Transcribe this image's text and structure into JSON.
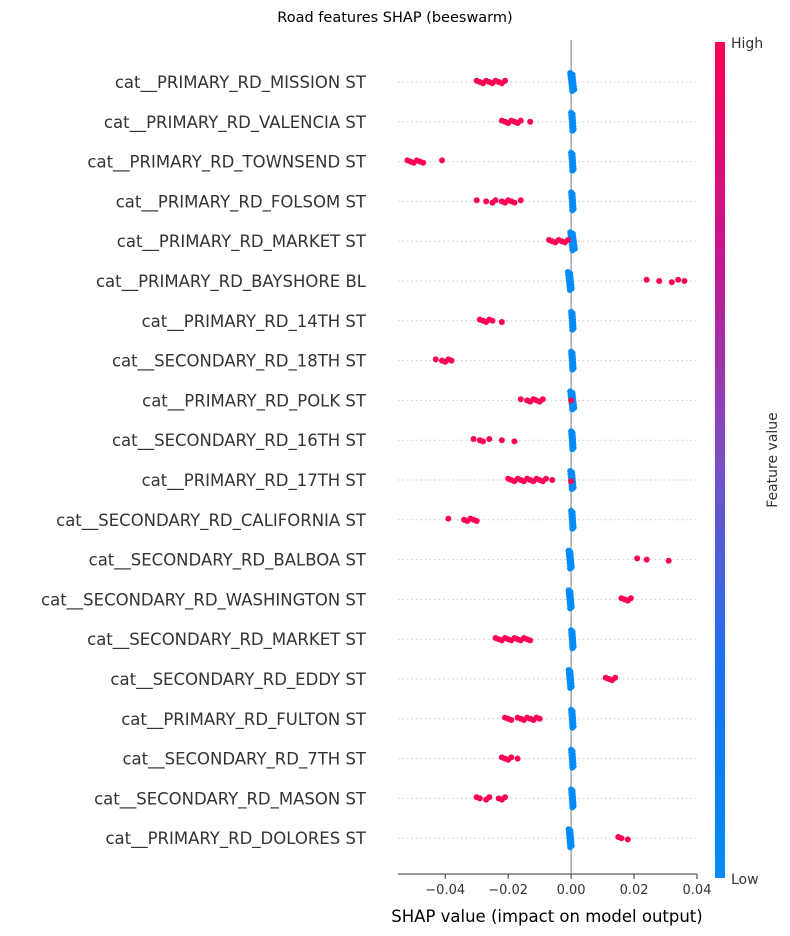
{
  "chart_data": {
    "type": "scatter",
    "subtype": "beeswarm",
    "title": "Road features SHAP (beeswarm)",
    "xlabel": "SHAP value (impact on model output)",
    "xlim": [
      -0.055,
      0.04
    ],
    "xticks": [
      -0.04,
      -0.02,
      0.0,
      0.02,
      0.04
    ],
    "xtick_labels": [
      "−0.04",
      "−0.02",
      "0.00",
      "0.02",
      "0.04"
    ],
    "colorbar": {
      "title": "Feature value",
      "high_label": "High",
      "low_label": "Low",
      "high_color": "#ff0052",
      "low_color": "#008bfb"
    },
    "features": [
      {
        "name": "cat__PRIMARY_RD_MISSION ST",
        "high_values": [
          -0.03,
          -0.029,
          -0.028,
          -0.027,
          -0.026,
          -0.025,
          -0.024,
          -0.023,
          -0.022,
          -0.021
        ],
        "low_range": [
          -0.0003,
          0.001
        ]
      },
      {
        "name": "cat__PRIMARY_RD_VALENCIA ST",
        "high_values": [
          -0.022,
          -0.021,
          -0.02,
          -0.019,
          -0.018,
          -0.017,
          -0.016,
          -0.013
        ],
        "low_range": [
          0.0,
          0.0008
        ]
      },
      {
        "name": "cat__PRIMARY_RD_TOWNSEND ST",
        "high_values": [
          -0.052,
          -0.051,
          -0.05,
          -0.049,
          -0.048,
          -0.047,
          -0.041
        ],
        "low_range": [
          0.0,
          0.0008
        ]
      },
      {
        "name": "cat__PRIMARY_RD_FOLSOM ST",
        "high_values": [
          -0.03,
          -0.027,
          -0.025,
          -0.024,
          -0.022,
          -0.021,
          -0.02,
          -0.019,
          -0.018,
          -0.016
        ],
        "low_range": [
          0.0,
          0.0008
        ]
      },
      {
        "name": "cat__PRIMARY_RD_MARKET ST",
        "high_values": [
          -0.007,
          -0.006,
          -0.005,
          -0.004,
          -0.003,
          -0.002,
          -0.001
        ],
        "low_range": [
          -0.0003,
          0.0012
        ]
      },
      {
        "name": "cat__PRIMARY_RD_BAYSHORE BL",
        "high_values": [
          0.024,
          0.028,
          0.032,
          0.034,
          0.036
        ],
        "low_range": [
          -0.001,
          0.0002
        ]
      },
      {
        "name": "cat__PRIMARY_RD_14TH ST",
        "high_values": [
          -0.029,
          -0.028,
          -0.027,
          -0.026,
          -0.025,
          -0.022
        ],
        "low_range": [
          0.0,
          0.0008
        ]
      },
      {
        "name": "cat__SECONDARY_RD_18TH ST",
        "high_values": [
          -0.043,
          -0.041,
          -0.04,
          -0.039,
          -0.038
        ],
        "low_range": [
          0.0,
          0.0008
        ]
      },
      {
        "name": "cat__PRIMARY_RD_POLK ST",
        "high_values": [
          -0.016,
          -0.014,
          -0.013,
          -0.012,
          -0.011,
          -0.01,
          -0.009,
          0.0
        ],
        "low_range": [
          -0.0003,
          0.001
        ]
      },
      {
        "name": "cat__SECONDARY_RD_16TH ST",
        "high_values": [
          -0.031,
          -0.029,
          -0.028,
          -0.026,
          -0.022,
          -0.018
        ],
        "low_range": [
          0.0,
          0.0008
        ]
      },
      {
        "name": "cat__PRIMARY_RD_17TH ST",
        "high_values": [
          -0.02,
          -0.019,
          -0.018,
          -0.017,
          -0.016,
          -0.015,
          -0.014,
          -0.013,
          -0.012,
          -0.011,
          -0.01,
          -0.009,
          -0.008,
          -0.006,
          0.0
        ],
        "low_range": [
          -0.0003,
          0.0008
        ]
      },
      {
        "name": "cat__SECONDARY_RD_CALIFORNIA ST",
        "high_values": [
          -0.039,
          -0.034,
          -0.033,
          -0.032,
          -0.031,
          -0.03
        ],
        "low_range": [
          0.0,
          0.0008
        ]
      },
      {
        "name": "cat__SECONDARY_RD_BALBOA ST",
        "high_values": [
          0.021,
          0.024,
          0.031
        ],
        "low_range": [
          -0.0008,
          0.0002
        ]
      },
      {
        "name": "cat__SECONDARY_RD_WASHINGTON ST",
        "high_values": [
          0.016,
          0.017,
          0.018,
          0.019
        ],
        "low_range": [
          -0.0008,
          0.0002
        ]
      },
      {
        "name": "cat__SECONDARY_RD_MARKET ST",
        "high_values": [
          -0.024,
          -0.023,
          -0.022,
          -0.021,
          -0.02,
          -0.019,
          -0.018,
          -0.017,
          -0.016,
          -0.015,
          -0.014,
          -0.013
        ],
        "low_range": [
          0.0,
          0.0008
        ]
      },
      {
        "name": "cat__SECONDARY_RD_EDDY ST",
        "high_values": [
          0.011,
          0.012,
          0.013,
          0.014
        ],
        "low_range": [
          -0.0008,
          0.0002
        ]
      },
      {
        "name": "cat__PRIMARY_RD_FULTON ST",
        "high_values": [
          -0.021,
          -0.02,
          -0.019,
          -0.017,
          -0.016,
          -0.015,
          -0.014,
          -0.013,
          -0.012,
          -0.011,
          -0.01
        ],
        "low_range": [
          0.0,
          0.0008
        ]
      },
      {
        "name": "cat__SECONDARY_RD_7TH ST",
        "high_values": [
          -0.022,
          -0.021,
          -0.02,
          -0.019,
          -0.017
        ],
        "low_range": [
          0.0,
          0.0008
        ]
      },
      {
        "name": "cat__SECONDARY_RD_MASON ST",
        "high_values": [
          -0.03,
          -0.029,
          -0.027,
          -0.026,
          -0.023,
          -0.022,
          -0.021
        ],
        "low_range": [
          0.0,
          0.0008
        ]
      },
      {
        "name": "cat__PRIMARY_RD_DOLORES ST",
        "high_values": [
          0.015,
          0.016,
          0.018
        ],
        "low_range": [
          -0.0008,
          0.0002
        ]
      }
    ]
  }
}
